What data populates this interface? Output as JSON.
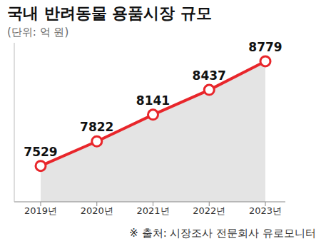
{
  "chart_data": {
    "type": "line",
    "title": "국내 반려동물 용품시장 규모",
    "subtitle": "(단위: 억 원)",
    "source": "※ 출처: 시장조사 전문회사 유로모니터",
    "categories": [
      "2019년",
      "2020년",
      "2021년",
      "2022년",
      "2023년"
    ],
    "values": [
      7529,
      7822,
      8141,
      8437,
      8779
    ],
    "color": "#e8262b",
    "marker": "circle",
    "data_labels": true,
    "ylim": [
      7100,
      9000
    ],
    "tick_labels": "x",
    "grid": false
  }
}
